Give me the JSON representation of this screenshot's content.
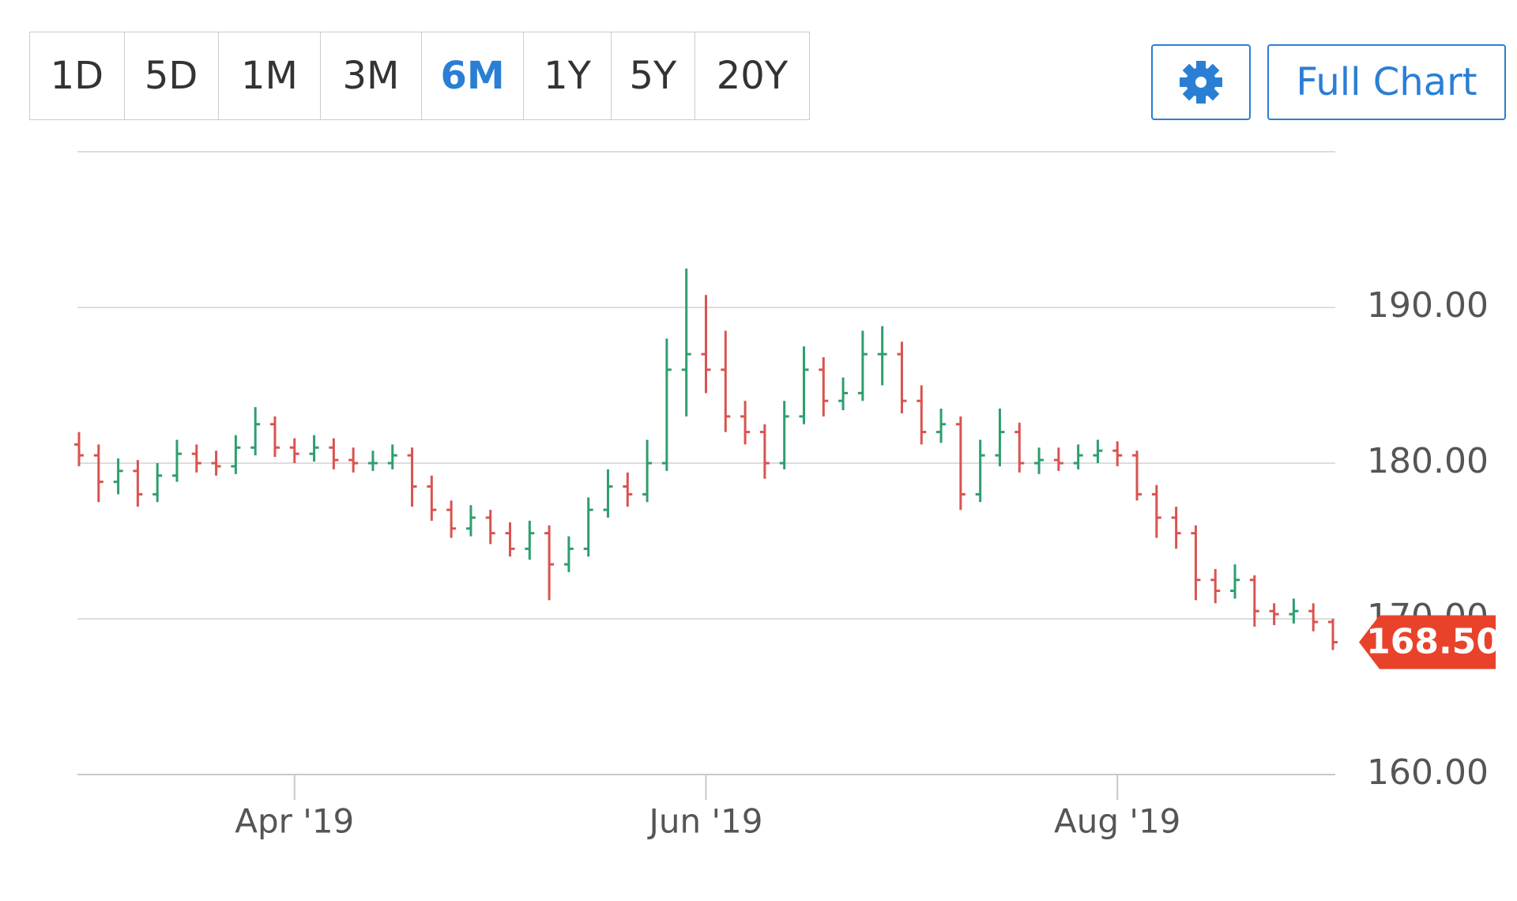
{
  "toolbar": {
    "ranges": [
      "1D",
      "5D",
      "1M",
      "3M",
      "6M",
      "1Y",
      "5Y",
      "20Y"
    ],
    "active_range": "6M",
    "full_chart": "Full Chart"
  },
  "chart_data": {
    "type": "ohlc",
    "categories": [
      null,
      null,
      null,
      null,
      null,
      null,
      null,
      null,
      null,
      null,
      null,
      "Apr '19",
      null,
      null,
      null,
      null,
      null,
      null,
      null,
      null,
      null,
      null,
      null,
      null,
      null,
      null,
      null,
      null,
      null,
      null,
      null,
      null,
      "Jun '19",
      null,
      null,
      null,
      null,
      null,
      null,
      null,
      null,
      null,
      null,
      null,
      null,
      null,
      null,
      null,
      null,
      null,
      null,
      null,
      null,
      "Aug '19",
      null,
      null,
      null,
      null,
      null,
      null,
      null,
      null,
      null,
      null,
      null
    ],
    "open": [
      181.2,
      180.5,
      178.8,
      179.5,
      178,
      179.2,
      180.6,
      180,
      179.8,
      181,
      182.5,
      181,
      180.6,
      181,
      180.2,
      180,
      180,
      180.5,
      178.5,
      177,
      175.8,
      176.5,
      175.5,
      174.5,
      175.5,
      173.5,
      174.5,
      177,
      178.5,
      178,
      180,
      186,
      187,
      186,
      183,
      182,
      180,
      183,
      186,
      184,
      184.5,
      187,
      187,
      184,
      182,
      182.5,
      178,
      180.5,
      182,
      180,
      180.2,
      180,
      180.5,
      180.8,
      180.5,
      178,
      176.5,
      175.5,
      172.5,
      171.8,
      172.5,
      170.5,
      170.3,
      170.5,
      169.8
    ],
    "high": [
      182,
      181.2,
      180.3,
      180.2,
      180,
      181.5,
      181.2,
      180.8,
      181.8,
      183.6,
      183,
      181.6,
      181.8,
      181.6,
      181,
      180.8,
      181.2,
      181,
      179.2,
      177.6,
      177.3,
      177,
      176.2,
      176.3,
      176,
      175.3,
      177.8,
      179.6,
      179.4,
      181.5,
      188,
      192.5,
      190.8,
      188.5,
      184,
      182.5,
      184,
      187.5,
      186.8,
      185.5,
      188.5,
      188.8,
      187.8,
      185,
      183.5,
      183,
      181.5,
      183.5,
      182.6,
      181,
      181,
      181.2,
      181.5,
      181.4,
      180.8,
      178.6,
      177.2,
      176,
      173.2,
      173.5,
      172.8,
      171,
      171.3,
      171,
      170
    ],
    "low": [
      179.8,
      177.5,
      178,
      177.2,
      177.5,
      178.8,
      179.4,
      179.2,
      179.3,
      180.5,
      180.4,
      180,
      180.1,
      179.6,
      179.4,
      179.5,
      179.6,
      177.2,
      176.3,
      175.2,
      175.3,
      174.8,
      174,
      173.8,
      171.2,
      173,
      174,
      176.5,
      177.2,
      177.5,
      179.5,
      183,
      184.5,
      182,
      181.2,
      179,
      179.6,
      182.5,
      183,
      183.4,
      184,
      185,
      183.2,
      181.2,
      181.3,
      177,
      177.5,
      179.8,
      179.4,
      179.3,
      179.5,
      179.6,
      180,
      179.8,
      177.6,
      175.2,
      174.5,
      171.2,
      171,
      171.3,
      169.5,
      169.6,
      169.7,
      169.2,
      168
    ],
    "close": [
      180.5,
      178.8,
      179.5,
      178,
      179.2,
      180.6,
      180,
      179.8,
      181,
      182.5,
      181,
      180.6,
      181,
      180.2,
      180,
      180,
      180.5,
      178.5,
      177,
      175.8,
      176.5,
      175.5,
      174.5,
      175.5,
      173.5,
      174.5,
      177,
      178.5,
      178,
      180,
      186,
      187,
      186,
      183,
      182,
      180,
      183,
      186,
      184,
      184.5,
      187,
      187,
      184,
      182,
      182.5,
      178,
      180.5,
      182,
      180,
      180.2,
      180,
      180.5,
      180.8,
      180.5,
      178,
      176.5,
      175.5,
      172.5,
      171.8,
      172.5,
      170.5,
      170.3,
      170.5,
      169.8,
      168.5
    ],
    "up_color": "#2e9e6e",
    "down_color": "#d9534f",
    "ylim": [
      160,
      200
    ],
    "yticks": [
      {
        "value": 160,
        "label": "160.00"
      },
      {
        "value": 170,
        "label": "170.00"
      },
      {
        "value": 180,
        "label": "180.00"
      },
      {
        "value": 190,
        "label": "190.00"
      }
    ],
    "grid": true,
    "last_price": {
      "value": 168.5,
      "label": "168.50",
      "color": "#e8432a"
    }
  }
}
